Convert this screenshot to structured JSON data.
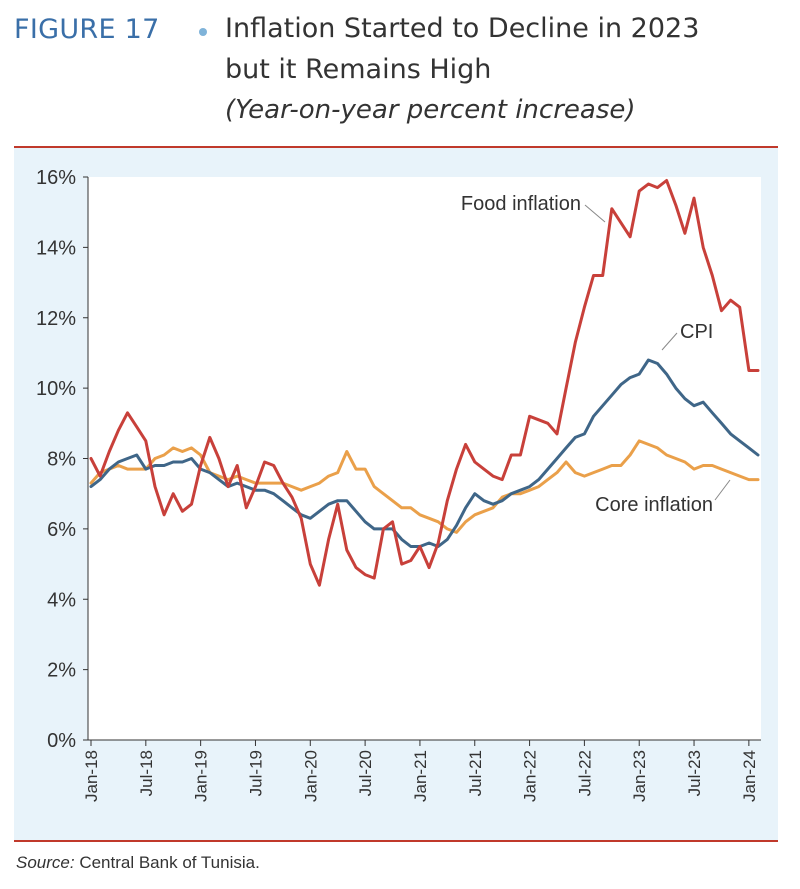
{
  "header": {
    "figure_label": "FIGURE 17",
    "title_line1": "Inflation Started to Decline in 2023",
    "title_line2": "but it Remains High",
    "subtitle": "(Year-on-year percent increase)"
  },
  "source": {
    "label": "Source:",
    "text": " Central Bank of Tunisia."
  },
  "colors": {
    "food": "#c8403a",
    "cpi": "#3f6688",
    "core": "#eaa04a",
    "accent_rule": "#c0392b",
    "plot_bg": "#ffffff",
    "frame_bg": "#e8f3fa"
  },
  "chart_data": {
    "type": "line",
    "title": "Inflation Started to Decline in 2023 but it Remains High",
    "ylabel": "Year-on-year percent increase",
    "xlabel": "",
    "ylim": [
      0,
      16
    ],
    "yticks": [
      0,
      2,
      4,
      6,
      8,
      10,
      12,
      14,
      16
    ],
    "ytick_labels": [
      "0%",
      "2%",
      "4%",
      "6%",
      "8%",
      "10%",
      "12%",
      "14%",
      "16%"
    ],
    "x_months_count": 74,
    "x_tick_labels": [
      "Jan-18",
      "Jul-18",
      "Jan-19",
      "Jul-19",
      "Jan-20",
      "Jul-20",
      "Jan-21",
      "Jul-21",
      "Jan-22",
      "Jul-22",
      "Jan-23",
      "Jul-23",
      "Jan-24"
    ],
    "x_tick_index": [
      0,
      6,
      12,
      18,
      24,
      30,
      36,
      42,
      48,
      54,
      60,
      66,
      72
    ],
    "series": [
      {
        "name": "Food inflation",
        "label": "Food inflation",
        "values": [
          8.0,
          7.5,
          8.2,
          8.8,
          9.3,
          8.9,
          8.5,
          7.2,
          6.4,
          7.0,
          6.5,
          6.7,
          7.8,
          8.6,
          8.0,
          7.2,
          7.8,
          6.6,
          7.2,
          7.9,
          7.8,
          7.3,
          6.9,
          6.3,
          5.0,
          4.4,
          5.7,
          6.7,
          5.4,
          4.9,
          4.7,
          4.6,
          6.0,
          6.2,
          5.0,
          5.1,
          5.5,
          4.9,
          5.6,
          6.8,
          7.7,
          8.4,
          7.9,
          7.7,
          7.5,
          7.4,
          8.1,
          8.1,
          9.2,
          9.1,
          9.0,
          8.7,
          10.0,
          11.3,
          12.3,
          13.2,
          13.2,
          15.1,
          14.7,
          14.3,
          15.6,
          15.8,
          15.7,
          15.9,
          15.2,
          14.4,
          15.4,
          14.0,
          13.2,
          12.2,
          12.5,
          12.3,
          10.5,
          10.5
        ]
      },
      {
        "name": "CPI",
        "label": "CPI",
        "values": [
          7.2,
          7.4,
          7.7,
          7.9,
          8.0,
          8.1,
          7.7,
          7.8,
          7.8,
          7.9,
          7.9,
          8.0,
          7.7,
          7.6,
          7.4,
          7.2,
          7.3,
          7.2,
          7.1,
          7.1,
          7.0,
          6.8,
          6.6,
          6.4,
          6.3,
          6.5,
          6.7,
          6.8,
          6.8,
          6.5,
          6.2,
          6.0,
          6.0,
          6.0,
          5.7,
          5.5,
          5.5,
          5.6,
          5.5,
          5.7,
          6.1,
          6.6,
          7.0,
          6.8,
          6.7,
          6.8,
          7.0,
          7.1,
          7.2,
          7.4,
          7.7,
          8.0,
          8.3,
          8.6,
          8.7,
          9.2,
          9.5,
          9.8,
          10.1,
          10.3,
          10.4,
          10.8,
          10.7,
          10.4,
          10.0,
          9.7,
          9.5,
          9.6,
          9.3,
          9.0,
          8.7,
          8.5,
          8.3,
          8.1
        ]
      },
      {
        "name": "Core inflation",
        "label": "Core inflation",
        "values": [
          7.3,
          7.6,
          7.7,
          7.8,
          7.7,
          7.7,
          7.7,
          8.0,
          8.1,
          8.3,
          8.2,
          8.3,
          8.1,
          7.6,
          7.5,
          7.4,
          7.5,
          7.4,
          7.3,
          7.3,
          7.3,
          7.3,
          7.2,
          7.1,
          7.2,
          7.3,
          7.5,
          7.6,
          8.2,
          7.7,
          7.7,
          7.2,
          7.0,
          6.8,
          6.6,
          6.6,
          6.4,
          6.3,
          6.2,
          6.0,
          5.9,
          6.2,
          6.4,
          6.5,
          6.6,
          6.9,
          7.0,
          7.0,
          7.1,
          7.2,
          7.4,
          7.6,
          7.9,
          7.6,
          7.5,
          7.6,
          7.7,
          7.8,
          7.8,
          8.1,
          8.5,
          8.4,
          8.3,
          8.1,
          8.0,
          7.9,
          7.7,
          7.8,
          7.8,
          7.7,
          7.6,
          7.5,
          7.4,
          7.4
        ]
      }
    ],
    "legend": "inline-labels"
  }
}
